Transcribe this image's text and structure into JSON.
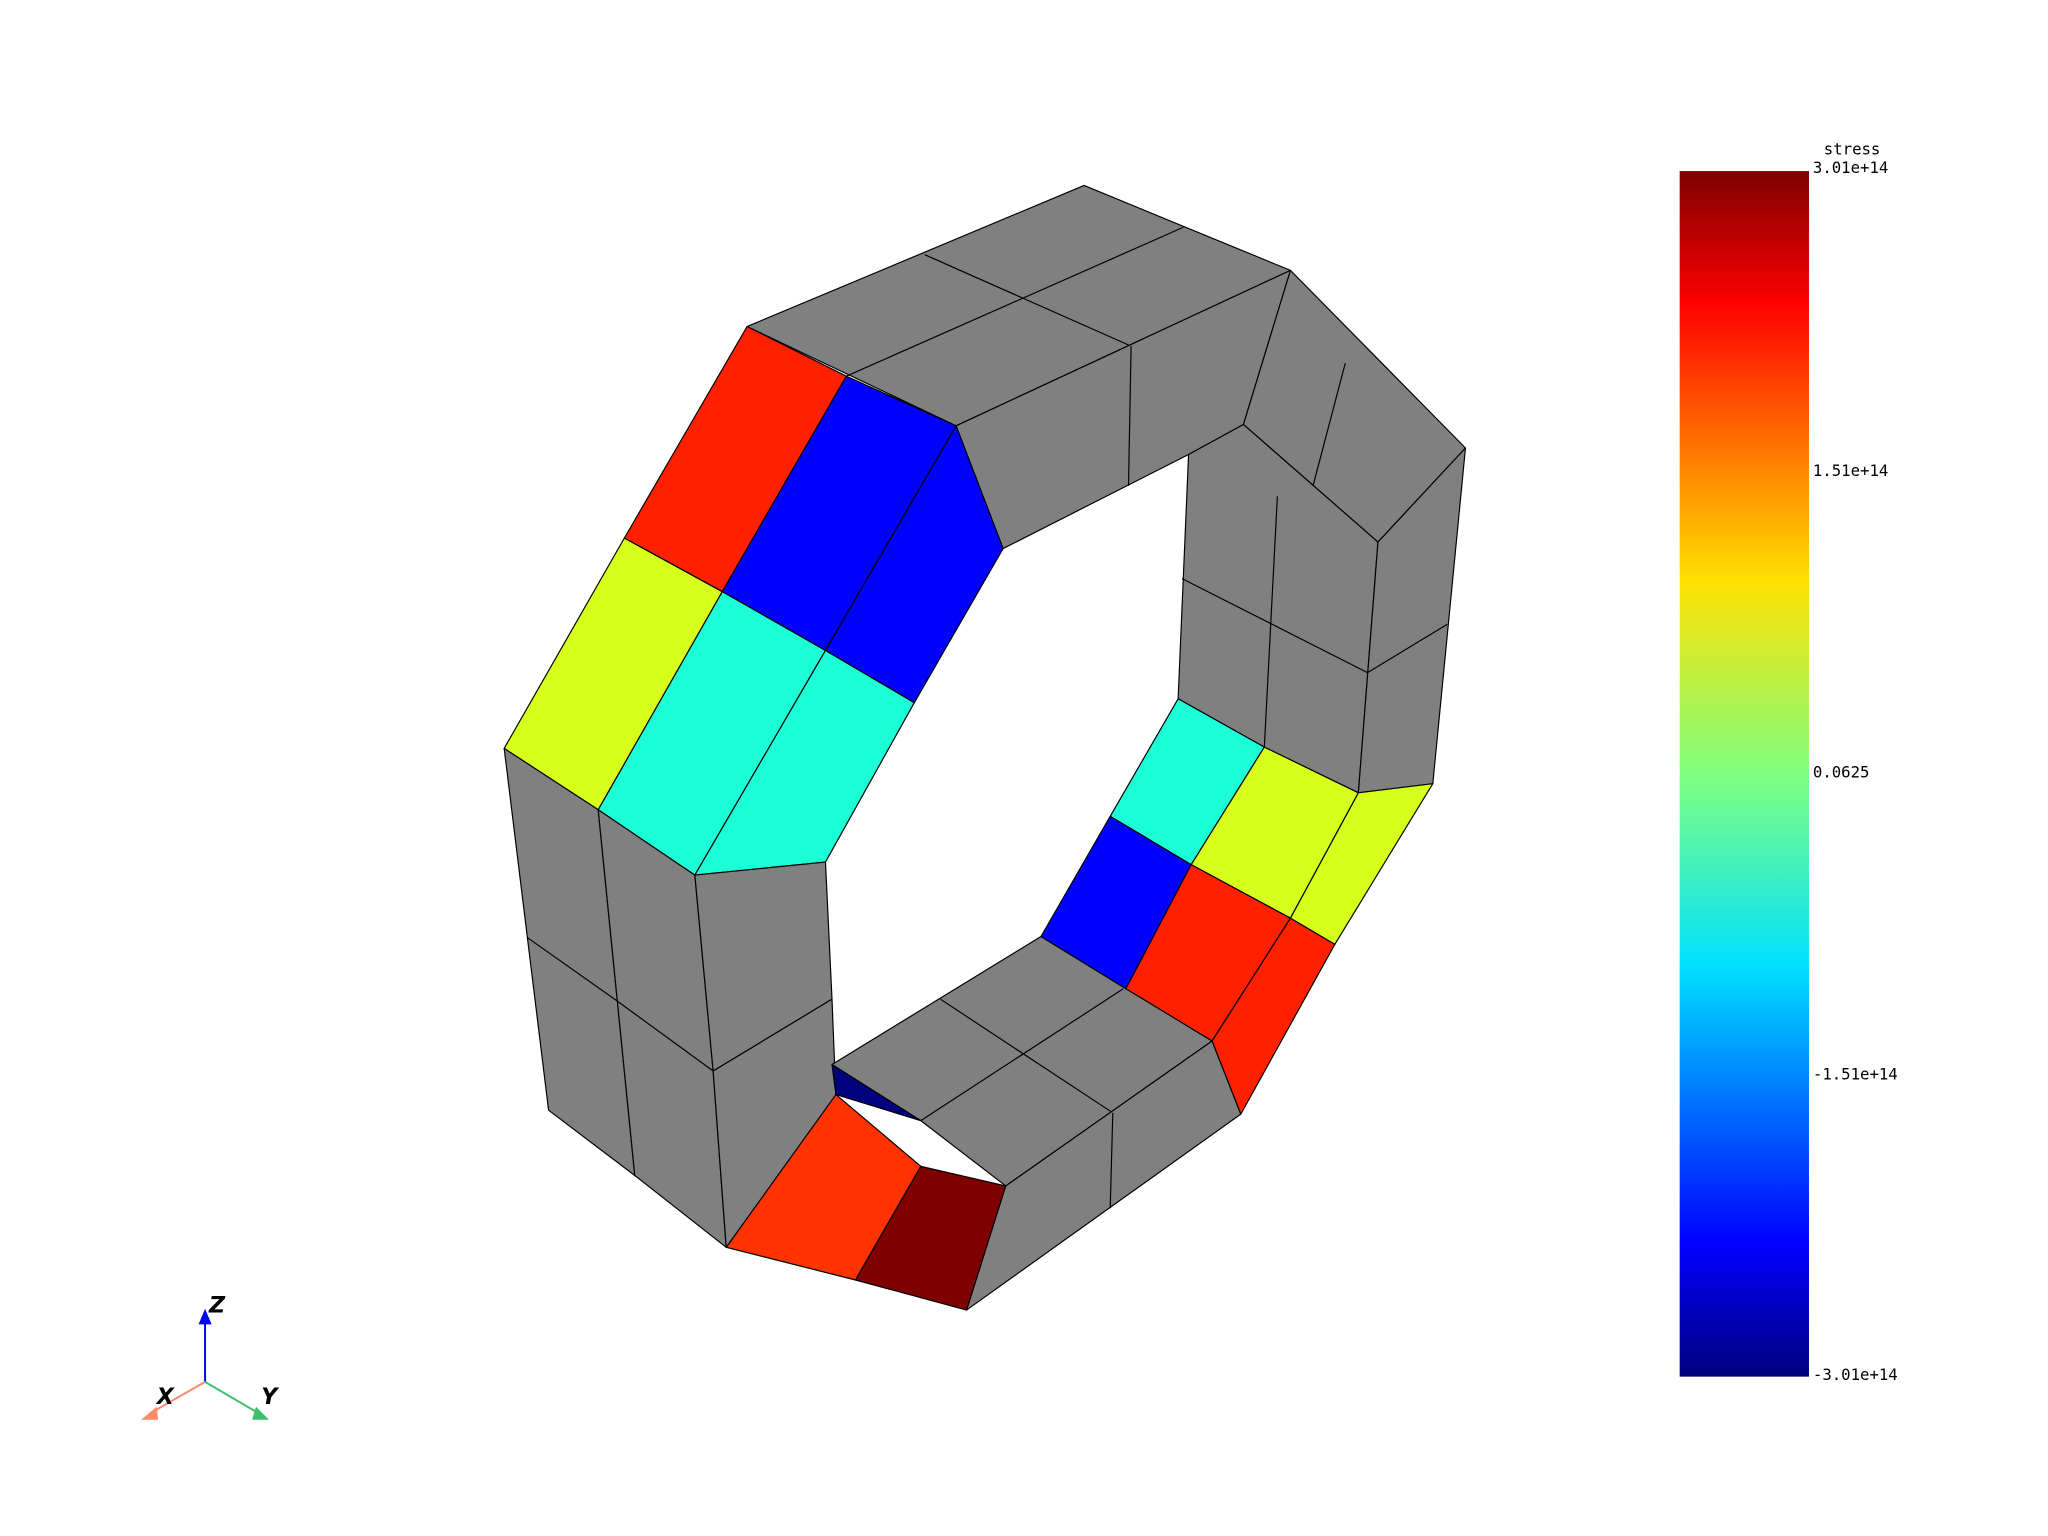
{
  "colorbar": {
    "title": "stress",
    "labels": [
      "3.01e+14",
      "1.51e+14",
      "0.0625",
      "-1.51e+14",
      "-3.01e+14"
    ]
  },
  "axes": {
    "x": "X",
    "y": "Y",
    "z": "Z"
  }
}
